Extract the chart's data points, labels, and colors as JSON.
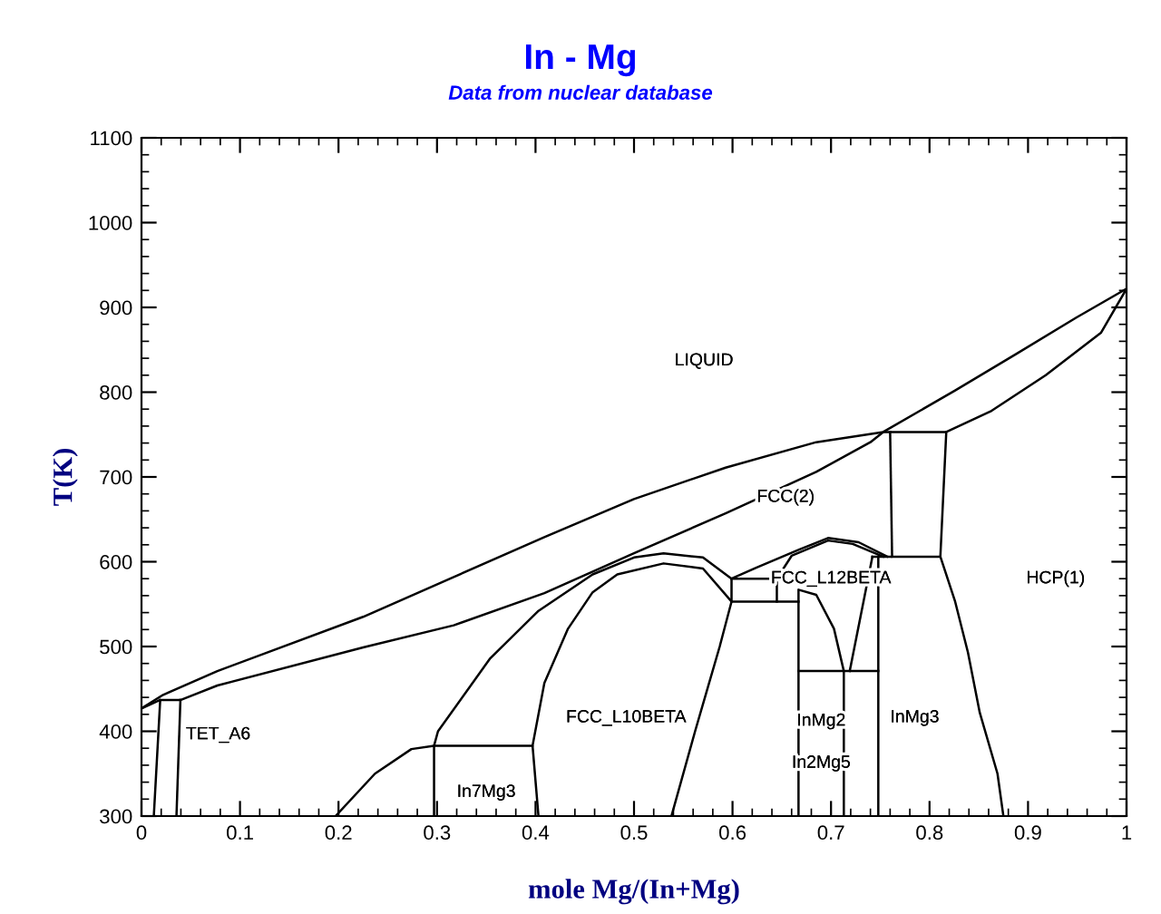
{
  "chart_data": {
    "type": "line",
    "title": "In - Mg",
    "subtitle": "Data from nuclear database",
    "xlabel": "mole Mg/(In+Mg)",
    "ylabel": "T(K)",
    "xlim": [
      0,
      1
    ],
    "ylim": [
      300,
      1100
    ],
    "xticks": [
      0,
      0.1,
      0.2,
      0.3,
      0.4,
      0.5,
      0.6,
      0.7,
      0.8,
      0.9,
      1
    ],
    "yticks": [
      300,
      400,
      500,
      600,
      700,
      800,
      900,
      1000,
      1100
    ],
    "grid": false,
    "legend": false,
    "marker": "none",
    "line_style": "solid",
    "series": [
      {
        "color": "#000000",
        "x": [
          0,
          0.022,
          0.077,
          0.225,
          0.317,
          0.409,
          0.5,
          0.593,
          0.685,
          0.753,
          0.826,
          0.888,
          0.949,
          1
        ],
        "values": [
          427,
          443,
          471,
          535,
          582,
          629,
          674,
          711,
          741,
          753,
          802,
          845,
          888,
          922
        ]
      },
      {
        "color": "#000000",
        "x": [
          0.019,
          0.04,
          0.077,
          0.225,
          0.317,
          0.409,
          0.5,
          0.593,
          0.685,
          0.74,
          0.753,
          0.817,
          0.863,
          0.918,
          0.974,
          1
        ],
        "values": [
          437,
          437,
          454,
          499,
          525,
          563,
          610,
          657,
          706,
          741,
          753,
          753,
          778,
          820,
          870,
          922
        ]
      },
      {
        "color": "#000000",
        "x": [
          0.76,
          0.762
        ],
        "values": [
          753,
          606
        ]
      },
      {
        "color": "#000000",
        "x": [
          0.817,
          0.811,
          0.826,
          0.839,
          0.851,
          0.869,
          0.875
        ],
        "values": [
          753,
          606,
          553,
          493,
          422,
          350,
          300
        ]
      },
      {
        "color": "#000000",
        "x": [
          0.742,
          0.811
        ],
        "values": [
          606,
          606
        ]
      },
      {
        "color": "#000000",
        "x": [
          0,
          0.019,
          0.0125
        ],
        "values": [
          427,
          437,
          300
        ]
      },
      {
        "color": "#000000",
        "x": [
          0.0355,
          0.0395
        ],
        "values": [
          300,
          437
        ]
      },
      {
        "color": "#000000",
        "x": [
          0.197,
          0.237,
          0.274,
          0.297,
          0.397,
          0.403
        ],
        "values": [
          300,
          350,
          379,
          383,
          383,
          300
        ]
      },
      {
        "color": "#000000",
        "x": [
          0.297,
          0.297,
          0.301,
          0.354,
          0.403,
          0.458,
          0.5,
          0.53,
          0.57,
          0.599,
          0.599,
          0.587,
          0.562,
          0.538
        ],
        "values": [
          300,
          383,
          400,
          486,
          542,
          585,
          605,
          610,
          605,
          580,
          553,
          500,
          400,
          300
        ]
      },
      {
        "color": "#000000",
        "x": [
          0.397,
          0.409,
          0.433,
          0.458,
          0.483,
          0.53,
          0.57,
          0.599
        ],
        "values": [
          383,
          457,
          521,
          564,
          585,
          598,
          592,
          553
        ]
      },
      {
        "color": "#000000",
        "x": [
          0.599,
          0.645
        ],
        "values": [
          580,
          580
        ]
      },
      {
        "color": "#000000",
        "x": [
          0.599,
          0.667
        ],
        "values": [
          553,
          553
        ]
      },
      {
        "color": "#000000",
        "x": [
          0.645,
          0.645
        ],
        "values": [
          580,
          553
        ]
      },
      {
        "color": "#000000",
        "x": [
          0.645,
          0.66,
          0.697,
          0.722,
          0.753
        ],
        "values": [
          580,
          607,
          625,
          621,
          606
        ]
      },
      {
        "color": "#000000",
        "x": [
          0.599,
          0.624,
          0.667,
          0.697,
          0.728,
          0.757
        ],
        "values": [
          580,
          593,
          614,
          628,
          623,
          606
        ]
      },
      {
        "color": "#000000",
        "x": [
          0.667,
          0.667,
          0.685,
          0.703,
          0.713,
          0.713
        ],
        "values": [
          300,
          567,
          561,
          521,
          471,
          300
        ]
      },
      {
        "color": "#000000",
        "x": [
          0.667,
          0.748
        ],
        "values": [
          471,
          471
        ]
      },
      {
        "color": "#000000",
        "x": [
          0.748,
          0.748
        ],
        "values": [
          606,
          300
        ]
      },
      {
        "color": "#000000",
        "x": [
          0.719,
          0.742
        ],
        "values": [
          471,
          606
        ]
      }
    ],
    "annotations": [
      "LIQUID",
      "FCC(2)",
      "FCC_L12BETA",
      "HCP(1)",
      "FCC_L10BETA",
      "TET_A6",
      "In7Mg3",
      "InMg2",
      "InMg3",
      "In2Mg5"
    ]
  }
}
